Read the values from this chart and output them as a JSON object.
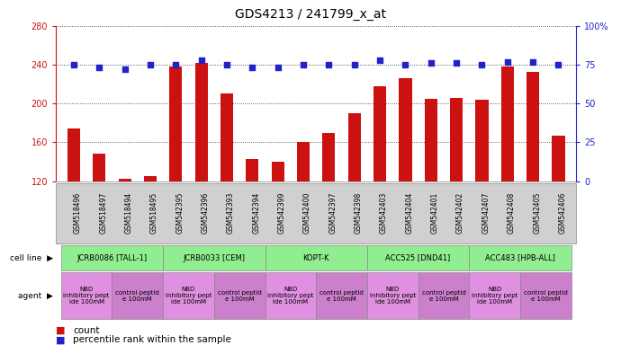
{
  "title": "GDS4213 / 241799_x_at",
  "samples": [
    "GSM518496",
    "GSM518497",
    "GSM518494",
    "GSM518495",
    "GSM542395",
    "GSM542396",
    "GSM542393",
    "GSM542394",
    "GSM542399",
    "GSM542400",
    "GSM542397",
    "GSM542398",
    "GSM542403",
    "GSM542404",
    "GSM542401",
    "GSM542402",
    "GSM542407",
    "GSM542408",
    "GSM542405",
    "GSM542406"
  ],
  "counts": [
    174,
    148,
    122,
    125,
    238,
    242,
    210,
    143,
    140,
    160,
    170,
    190,
    218,
    226,
    205,
    206,
    204,
    238,
    233,
    167
  ],
  "percentiles": [
    75,
    73,
    72,
    75,
    75,
    78,
    75,
    73,
    73,
    75,
    75,
    75,
    78,
    75,
    76,
    76,
    75,
    77,
    77,
    75
  ],
  "bar_color": "#cc1111",
  "dot_color": "#2222cc",
  "ylim_left": [
    120,
    280
  ],
  "ylim_right": [
    0,
    100
  ],
  "yticks_left": [
    120,
    160,
    200,
    240,
    280
  ],
  "yticks_right": [
    0,
    25,
    50,
    75,
    100
  ],
  "cell_lines": [
    {
      "label": "JCRB0086 [TALL-1]",
      "start": 0,
      "end": 4,
      "color": "#90ee90"
    },
    {
      "label": "JCRB0033 [CEM]",
      "start": 4,
      "end": 8,
      "color": "#90ee90"
    },
    {
      "label": "KOPT-K",
      "start": 8,
      "end": 12,
      "color": "#90ee90"
    },
    {
      "label": "ACC525 [DND41]",
      "start": 12,
      "end": 16,
      "color": "#90ee90"
    },
    {
      "label": "ACC483 [HPB-ALL]",
      "start": 16,
      "end": 20,
      "color": "#90ee90"
    }
  ],
  "agents": [
    {
      "label": "NBD\ninhibitory pept\nide 100mM",
      "start": 0,
      "end": 2
    },
    {
      "label": "control peptid\ne 100mM",
      "start": 2,
      "end": 4
    },
    {
      "label": "NBD\ninhibitory pept\nide 100mM",
      "start": 4,
      "end": 6
    },
    {
      "label": "control peptid\ne 100mM",
      "start": 6,
      "end": 8
    },
    {
      "label": "NBD\ninhibitory pept\nide 100mM",
      "start": 8,
      "end": 10
    },
    {
      "label": "control peptid\ne 100mM",
      "start": 10,
      "end": 12
    },
    {
      "label": "NBD\ninhibitory pept\nide 100mM",
      "start": 12,
      "end": 14
    },
    {
      "label": "control peptid\ne 100mM",
      "start": 14,
      "end": 16
    },
    {
      "label": "NBD\ninhibitory pept\nide 100mM",
      "start": 16,
      "end": 18
    },
    {
      "label": "control peptid\ne 100mM",
      "start": 18,
      "end": 20
    }
  ],
  "agent_colors": [
    "#e090e0",
    "#cc80cc"
  ],
  "left_axis_color": "#cc1111",
  "right_axis_color": "#2222cc",
  "grid_color": "#333333",
  "xtick_bg": "#d0d0d0",
  "bg_color": "#ffffff"
}
